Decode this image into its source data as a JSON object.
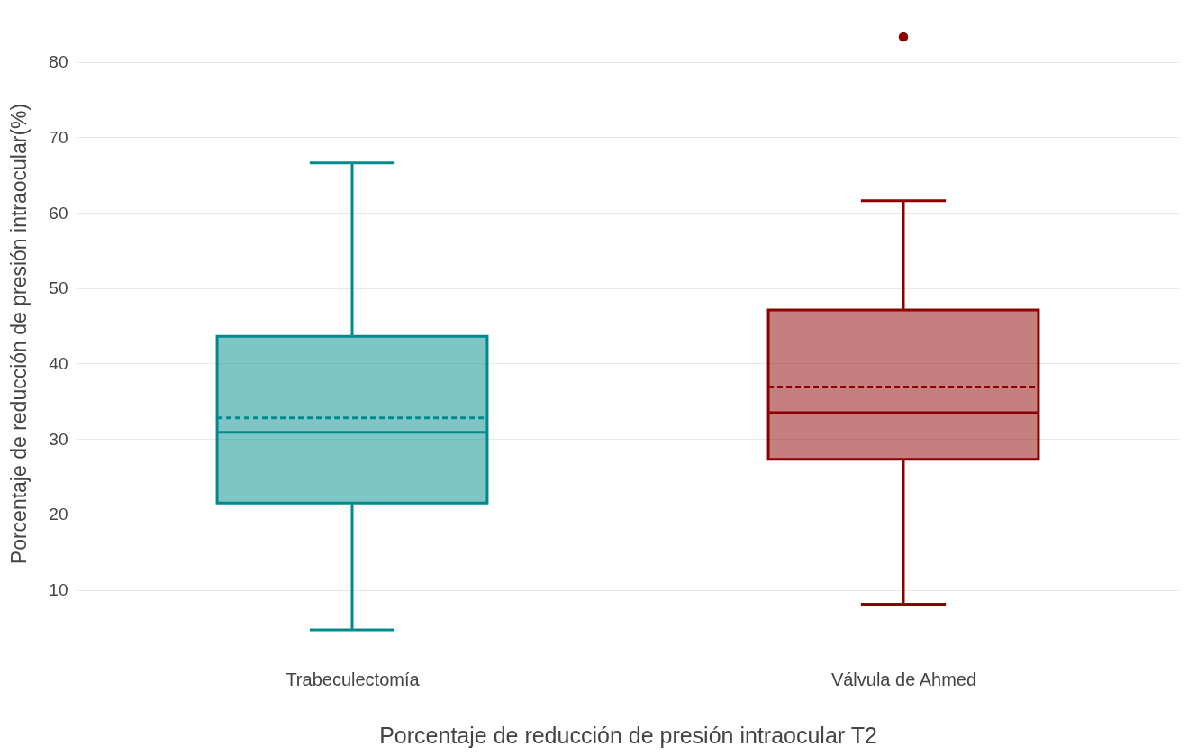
{
  "chart_data": {
    "type": "box",
    "xlabel": "Porcentaje de reducción de presión intraocular T2",
    "ylabel": "Porcentaje de reducción de presión intraocular(%)",
    "categories": [
      "Trabeculectomía",
      "Válvula de Ahmed"
    ],
    "colors": [
      "#008b8b",
      "#8b0000"
    ],
    "boxes": [
      {
        "low": 4.7,
        "q1": 21.5,
        "median": 30.9,
        "q3": 43.6,
        "high": 66.6,
        "mean": 32.8
      },
      {
        "low": 8.1,
        "q1": 27.3,
        "median": 33.5,
        "q3": 47.1,
        "high": 61.6,
        "mean": 36.9,
        "outliers": [
          83.3
        ]
      }
    ],
    "ylim": [
      1,
      87
    ],
    "yticks": [
      10,
      20,
      30,
      40,
      50,
      60,
      70,
      80
    ],
    "grid": "y",
    "legend": false
  }
}
